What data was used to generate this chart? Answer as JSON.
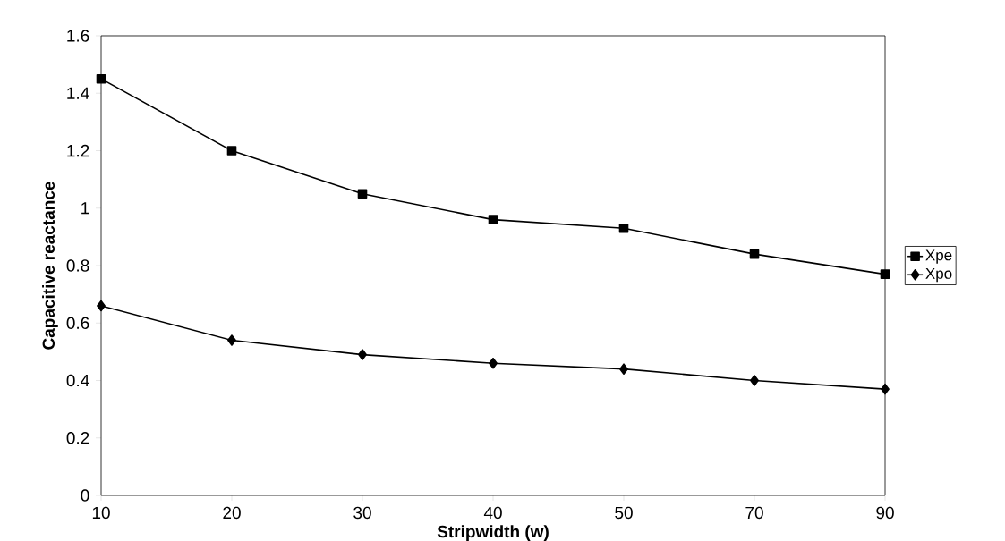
{
  "chart_data": {
    "type": "line",
    "xlabel": "Stripwidth (w)",
    "ylabel": "Capacitive reactance",
    "categories": [
      "10",
      "20",
      "30",
      "40",
      "50",
      "70",
      "90"
    ],
    "series": [
      {
        "name": "Xpe",
        "color": "#000000",
        "marker": "square",
        "values": [
          1.45,
          1.2,
          1.05,
          0.96,
          0.93,
          0.84,
          0.77
        ]
      },
      {
        "name": "Xpo",
        "color": "#000000",
        "marker": "diamond",
        "values": [
          0.66,
          0.54,
          0.49,
          0.46,
          0.44,
          0.4,
          0.37
        ]
      }
    ],
    "ylim": [
      0,
      1.6
    ],
    "yticks": [
      0,
      0.2,
      0.4,
      0.6,
      0.8,
      1,
      1.2,
      1.4,
      1.6
    ],
    "grid": false,
    "legend": "right",
    "line_style": "solid"
  }
}
